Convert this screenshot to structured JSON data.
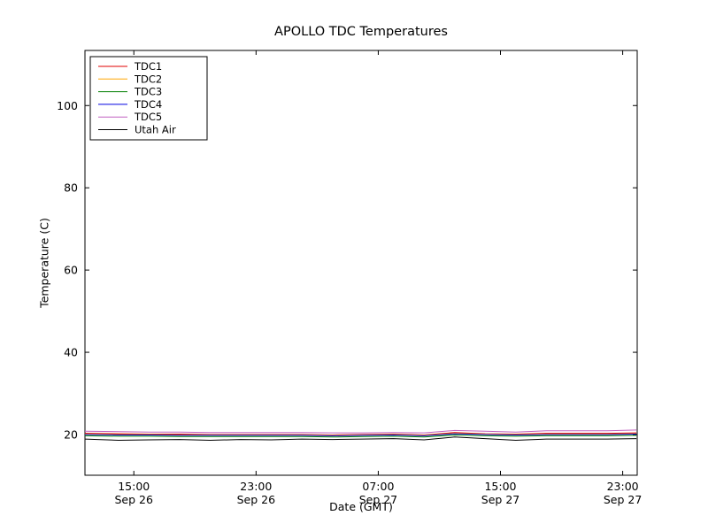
{
  "figure": {
    "background": "#ffffff",
    "spine_color": "#000000"
  },
  "chart_data": {
    "type": "line",
    "title": "APOLLO TDC Temperatures",
    "xlabel": "Date (GMT)",
    "ylabel": "Temperature (C)",
    "ylim": [
      10.1,
      113.4
    ],
    "xlim_hours": [
      11.8,
      47.95
    ],
    "yticks": [
      20,
      40,
      60,
      80,
      100
    ],
    "xticks": [
      {
        "hour": 15,
        "time": "15:00",
        "date": "Sep 26"
      },
      {
        "hour": 23,
        "time": "23:00",
        "date": "Sep 26"
      },
      {
        "hour": 31,
        "time": "07:00",
        "date": "Sep 27"
      },
      {
        "hour": 39,
        "time": "15:00",
        "date": "Sep 27"
      },
      {
        "hour": 47,
        "time": "23:00",
        "date": "Sep 27"
      }
    ],
    "grid": false,
    "legend_position": "upper left",
    "x_hours": [
      11.8,
      14,
      16,
      18,
      20,
      22,
      24,
      26,
      28,
      30,
      32,
      34,
      36,
      38,
      40,
      42,
      44,
      46,
      47.9
    ],
    "series": [
      {
        "name": "TDC1",
        "color": "#e00000",
        "values": [
          20.3,
          20.2,
          20.1,
          20.1,
          20.0,
          20.0,
          20.0,
          20.0,
          19.9,
          20.0,
          20.1,
          19.9,
          20.5,
          20.2,
          20.1,
          20.3,
          20.3,
          20.3,
          20.4
        ]
      },
      {
        "name": "TDC2",
        "color": "#ffa500",
        "values": [
          20.1,
          20.0,
          20.0,
          19.9,
          19.9,
          19.9,
          19.9,
          19.9,
          19.8,
          19.9,
          20.0,
          19.8,
          20.3,
          20.1,
          20.0,
          20.1,
          20.1,
          20.1,
          20.2
        ]
      },
      {
        "name": "TDC3",
        "color": "#007f00",
        "values": [
          19.7,
          19.6,
          19.6,
          19.5,
          19.5,
          19.5,
          19.5,
          19.5,
          19.4,
          19.5,
          19.6,
          19.4,
          19.9,
          19.7,
          19.6,
          19.7,
          19.7,
          19.7,
          19.8
        ]
      },
      {
        "name": "TDC4",
        "color": "#0000e0",
        "values": [
          20.0,
          19.9,
          19.9,
          19.8,
          19.8,
          19.8,
          19.8,
          19.8,
          19.7,
          19.8,
          19.9,
          19.7,
          20.2,
          20.0,
          19.9,
          20.0,
          20.0,
          20.0,
          20.1
        ]
      },
      {
        "name": "TDC5",
        "color": "#c060c0",
        "values": [
          20.8,
          20.7,
          20.6,
          20.6,
          20.5,
          20.5,
          20.5,
          20.5,
          20.4,
          20.4,
          20.5,
          20.4,
          21.0,
          20.8,
          20.6,
          20.9,
          20.9,
          20.9,
          21.1
        ]
      },
      {
        "name": "Utah Air",
        "color": "#000000",
        "values": [
          18.9,
          18.6,
          18.7,
          18.8,
          18.6,
          18.8,
          18.7,
          18.9,
          18.8,
          18.9,
          19.0,
          18.7,
          19.4,
          19.0,
          18.6,
          18.9,
          18.9,
          18.9,
          19.0
        ]
      }
    ]
  }
}
